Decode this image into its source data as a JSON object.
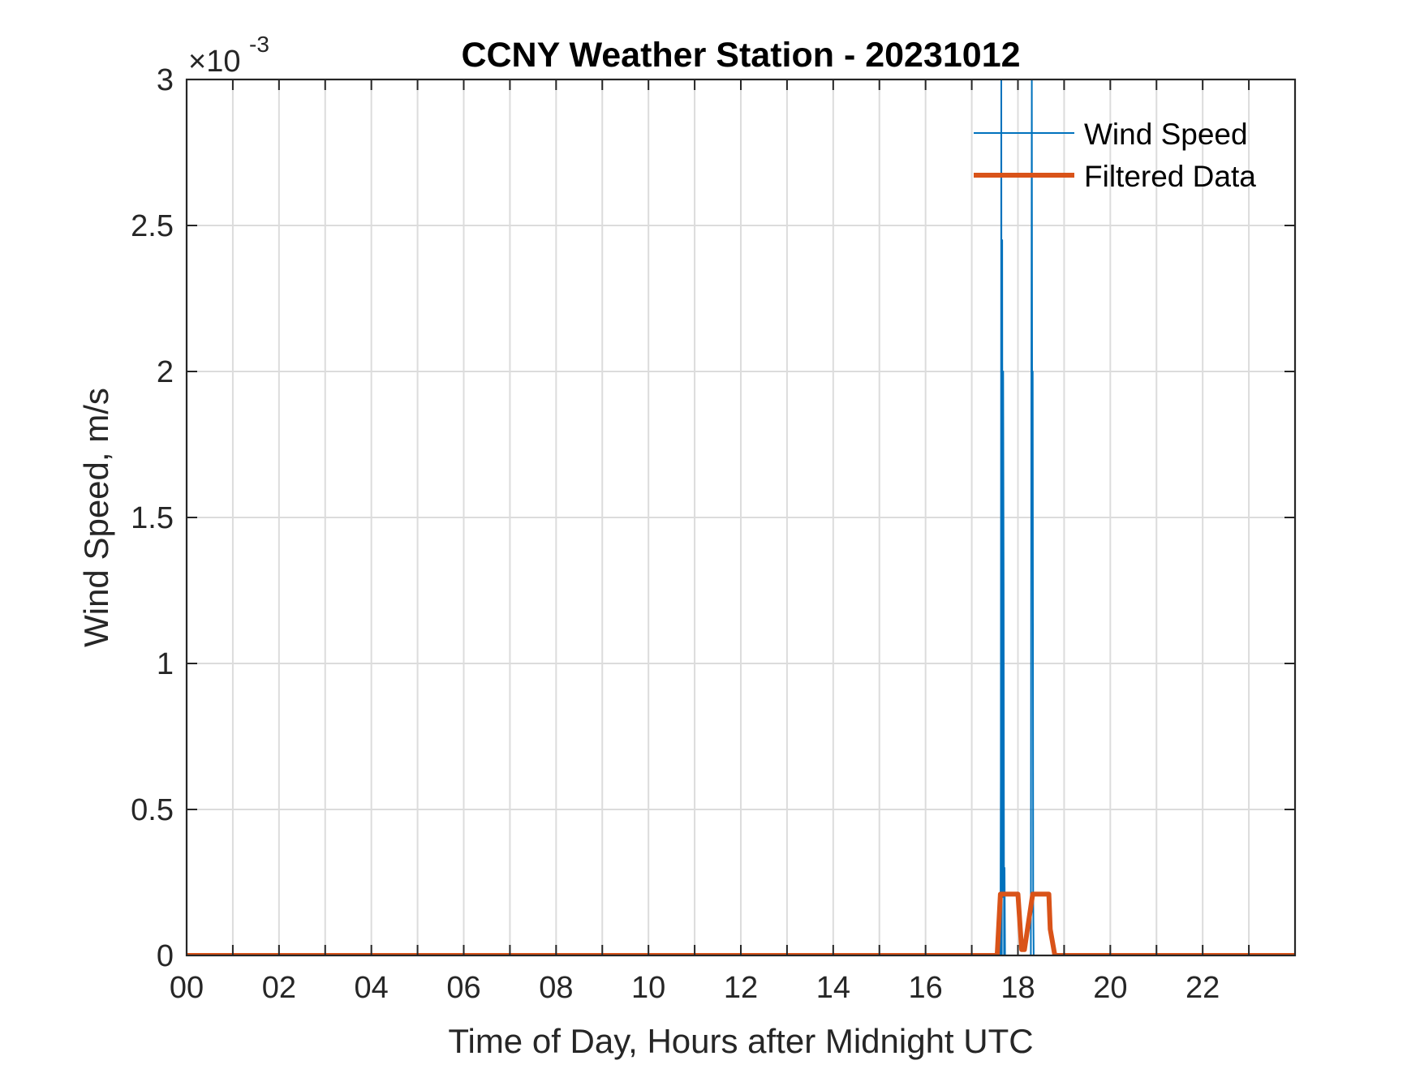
{
  "chart_data": {
    "type": "line",
    "title": "CCNY Weather Station - 20231012",
    "xlabel": "Time of Day, Hours after Midnight UTC",
    "ylabel": "Wind Speed, m/s",
    "y_exponent_label": "×10",
    "y_exponent_power": "-3",
    "xlim": [
      0,
      24
    ],
    "ylim": [
      0,
      3
    ],
    "x_ticks": [
      0,
      2,
      4,
      6,
      8,
      10,
      12,
      14,
      16,
      18,
      20,
      22
    ],
    "x_tick_labels": [
      "00",
      "02",
      "04",
      "06",
      "08",
      "10",
      "12",
      "14",
      "16",
      "18",
      "20",
      "22"
    ],
    "x_minor_ticks": [
      1,
      3,
      5,
      7,
      9,
      11,
      13,
      15,
      17,
      19,
      21,
      23
    ],
    "y_ticks": [
      0,
      0.5,
      1,
      1.5,
      2,
      2.5,
      3
    ],
    "y_tick_labels": [
      "0",
      "0.5",
      "1",
      "1.5",
      "2",
      "2.5",
      "3"
    ],
    "grid": true,
    "legend_position": "top-right",
    "series": [
      {
        "name": "Wind Speed",
        "color": "#0072BD",
        "x": [
          0,
          17.62,
          17.63,
          17.64,
          17.65,
          17.66,
          17.67,
          17.68,
          17.69,
          17.7,
          17.71,
          17.72,
          17.73,
          18.28,
          18.29,
          18.3,
          18.31,
          18.32,
          18.33,
          18.34,
          18.35,
          23.99
        ],
        "y": [
          0,
          0,
          0.6,
          3.0,
          0,
          2.45,
          0.2,
          2.0,
          1.25,
          0,
          0.3,
          0,
          0,
          0,
          1.85,
          3.0,
          1.6,
          2.0,
          0.2,
          0,
          0,
          0
        ]
      },
      {
        "name": "Filtered Data",
        "color": "#D95319",
        "x": [
          0,
          17.55,
          17.62,
          17.7,
          18.0,
          18.08,
          18.14,
          18.32,
          18.38,
          18.67,
          18.7,
          18.8,
          23.99
        ],
        "y": [
          0,
          0,
          0.21,
          0.21,
          0.21,
          0.02,
          0.02,
          0.21,
          0.21,
          0.21,
          0.09,
          0,
          0
        ]
      }
    ]
  }
}
